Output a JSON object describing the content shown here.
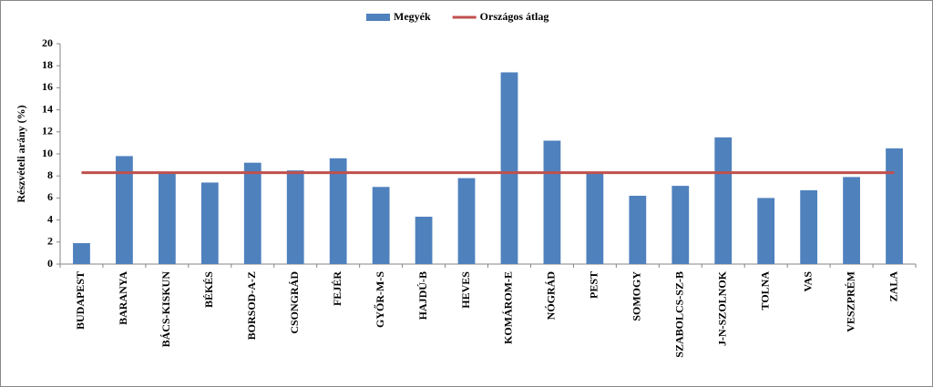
{
  "chart_data": {
    "type": "bar",
    "y_label": "Részvételi arány (%)",
    "categories": [
      "BUDAPEST",
      "BARANYA",
      "BÁCS-KISKUN",
      "BÉKÉS",
      "BORSOD-A-Z",
      "CSONGRÁD",
      "FEJÉR",
      "GYŐR-M-S",
      "HAJDÚ-B",
      "HEVES",
      "KOMÁROM-E",
      "NÓGRÁD",
      "PEST",
      "SOMOGY",
      "SZABOLCS-SZ-B",
      "J-N-SZOLNOK",
      "TOLNA",
      "VAS",
      "VESZPRÉM",
      "ZALA"
    ],
    "series": [
      {
        "name": "Megyék",
        "type": "bar",
        "color": "#4f81bd",
        "values": [
          1.9,
          9.8,
          8.3,
          7.4,
          9.2,
          8.5,
          9.6,
          7.0,
          4.3,
          7.8,
          17.4,
          11.2,
          8.3,
          6.2,
          7.1,
          11.5,
          6.0,
          6.7,
          7.9,
          10.5
        ]
      },
      {
        "name": "Országos átlag",
        "type": "line",
        "color": "#c0504d",
        "values": [
          8.3,
          8.3,
          8.3,
          8.3,
          8.3,
          8.3,
          8.3,
          8.3,
          8.3,
          8.3,
          8.3,
          8.3,
          8.3,
          8.3,
          8.3,
          8.3,
          8.3,
          8.3,
          8.3,
          8.3
        ]
      }
    ],
    "ylim": [
      0,
      20
    ],
    "yticks": [
      0,
      2,
      4,
      6,
      8,
      10,
      12,
      14,
      16,
      18,
      20
    ],
    "grid": false,
    "legend": "top"
  }
}
